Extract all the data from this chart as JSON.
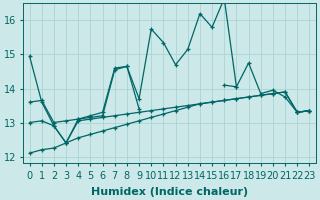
{
  "xlabel": "Humidex (Indice chaleur)",
  "bg_color": "#cce8e8",
  "line_color": "#006666",
  "xlim": [
    -0.5,
    23.5
  ],
  "ylim": [
    11.8,
    16.5
  ],
  "yticks": [
    12,
    13,
    14,
    15,
    16
  ],
  "xticks": [
    0,
    1,
    2,
    3,
    4,
    5,
    6,
    7,
    8,
    9,
    10,
    11,
    12,
    13,
    14,
    15,
    16,
    17,
    18,
    19,
    20,
    21,
    22,
    23
  ],
  "series": [
    [
      14.95,
      13.6,
      12.9,
      12.4,
      13.1,
      13.2,
      13.3,
      14.6,
      14.65,
      13.7,
      15.75,
      15.35,
      14.7,
      15.15,
      16.2,
      15.8,
      16.65,
      14.05,
      14.75,
      13.85,
      13.95,
      13.75,
      13.3,
      13.35
    ],
    [
      13.6,
      13.65,
      13.0,
      13.05,
      13.1,
      13.15,
      13.2,
      14.55,
      14.65,
      13.4,
      null,
      null,
      null,
      null,
      null,
      null,
      14.1,
      14.05,
      null,
      null,
      null,
      null,
      13.3,
      13.35
    ],
    [
      13.0,
      13.05,
      12.9,
      12.4,
      13.05,
      13.1,
      13.15,
      13.2,
      13.25,
      13.3,
      13.35,
      13.4,
      13.45,
      13.5,
      13.55,
      13.6,
      13.65,
      13.7,
      13.75,
      13.8,
      13.85,
      13.9,
      13.3,
      13.35
    ],
    [
      12.1,
      12.2,
      12.25,
      12.4,
      12.55,
      12.65,
      12.75,
      12.85,
      12.95,
      13.05,
      13.15,
      13.25,
      13.35,
      13.45,
      13.55,
      13.6,
      13.65,
      13.7,
      13.75,
      13.8,
      13.85,
      13.9,
      13.3,
      13.35
    ]
  ],
  "grid_color": "#aad4d4",
  "tick_fontsize": 7,
  "xlabel_fontsize": 8
}
